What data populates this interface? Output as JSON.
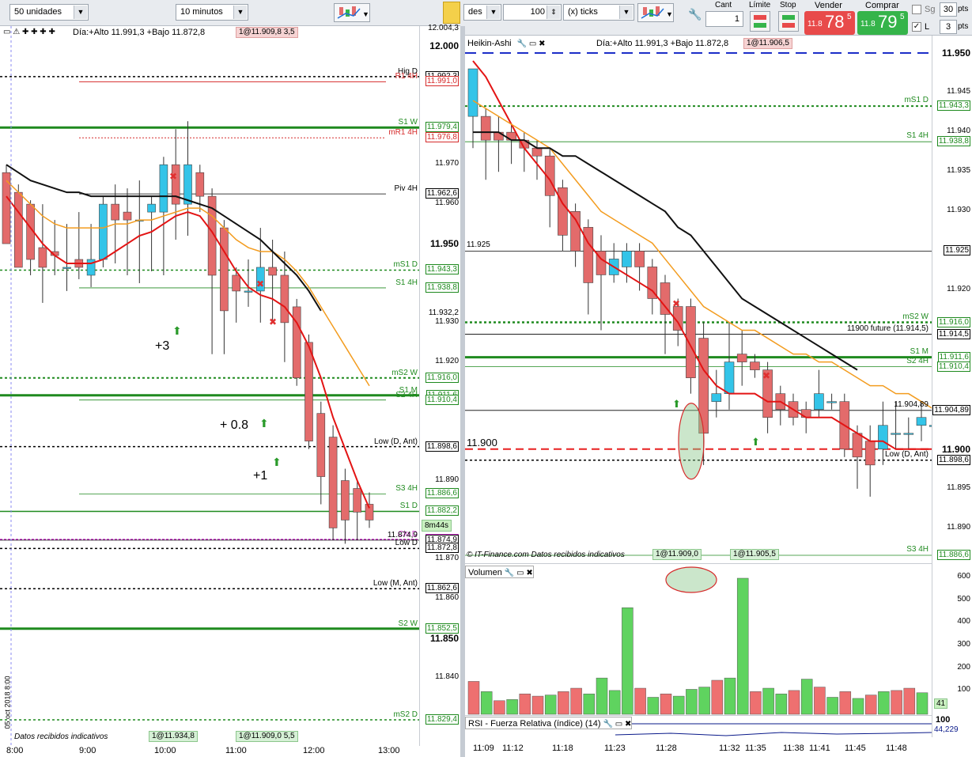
{
  "left": {
    "toolbar": {
      "quantity_combo": "50 unidades",
      "timeframe_combo": "10 minutos"
    },
    "header": {
      "range_text": "Día:+Alto 11.991,3 +Bajo 11.872,8",
      "price_box": "1@11.909,8",
      "price_box_suffix": "3,5"
    },
    "price_levels": [
      {
        "value": "12.004,3",
        "label": ""
      },
      {
        "value": "12.000",
        "label": ""
      },
      {
        "value": "11.992,3",
        "label": "Hig D"
      },
      {
        "value": "11.991,0",
        "label": "R1 4H"
      },
      {
        "value": "11.979,4",
        "label": "S1 W"
      },
      {
        "value": "11.976,8",
        "label": "mR1 4H"
      },
      {
        "value": "11.970",
        "label": ""
      },
      {
        "value": "11.962,6",
        "label": "Piv 4H"
      },
      {
        "value": "11.960",
        "label": ""
      },
      {
        "value": "11.950",
        "label": ""
      },
      {
        "value": "11.943,3",
        "label": "mS1 D"
      },
      {
        "value": "11.938,8",
        "label": "S1 4H"
      },
      {
        "value": "11.932,2",
        "label": ""
      },
      {
        "value": "11.930",
        "label": ""
      },
      {
        "value": "11.920",
        "label": ""
      },
      {
        "value": "11.916,0",
        "label": "mS2 W"
      },
      {
        "value": "11.911,6",
        "label": "S1 M"
      },
      {
        "value": "11.910,4",
        "label": "S2 4H"
      },
      {
        "value": "11.898,6",
        "label": "Low (D, Ant)"
      },
      {
        "value": "11.890",
        "label": ""
      },
      {
        "value": "11.886,6",
        "label": "S3 4H"
      },
      {
        "value": "11.882,2",
        "label": "S1 D"
      },
      {
        "value": "11.875,1",
        "label": "Clo D"
      },
      {
        "value": "11.874,9",
        "label": "11.874,9"
      },
      {
        "value": "11.872,8",
        "label": "Low D"
      },
      {
        "value": "11.870",
        "label": ""
      },
      {
        "value": "11.862,6",
        "label": "Low (M, Ant)"
      },
      {
        "value": "11.860",
        "label": ""
      },
      {
        "value": "11.852,5",
        "label": "S2 W"
      },
      {
        "value": "11.850",
        "label": ""
      },
      {
        "value": "11.840",
        "label": ""
      },
      {
        "value": "11.829,4",
        "label": "mS2 D"
      }
    ],
    "countdown": "8m44s",
    "annotations": [
      "+3",
      "+ 0.8",
      "+1"
    ],
    "footer_source": "Datos recibidos indicativos",
    "footer_box1": "1@11.934,8",
    "footer_box2": "1@11.909,0",
    "footer_box2_suffix": "5,5",
    "date_label": "05 oct 2018 8:00",
    "time_labels": [
      "8:00",
      "9:00",
      "10:00",
      "11:00",
      "12:00",
      "13:00"
    ]
  },
  "right": {
    "toolbar": {
      "partial_label": "des",
      "ticks_value": "100",
      "ticks_unit": "(x) ticks",
      "cant_label": "Cant",
      "cant_value": "1",
      "limite_label": "Límite",
      "stop_label": "Stop",
      "vender_label": "Vender",
      "vender_small": "11.8",
      "vender_big": "78",
      "vender_frac": "5",
      "comprar_label": "Comprar",
      "comprar_small": "11.8",
      "comprar_big": "79",
      "comprar_frac": "5",
      "sg_label": "Sg",
      "sg_value": "30",
      "l_label": "L",
      "l_value": "3",
      "pts": "pts"
    },
    "header": {
      "title": "Heikin-Ashi",
      "range_text": "Día:+Alto 11.991,3 +Bajo 11.872,8",
      "price_box": "1@11.906,5"
    },
    "price_levels": [
      {
        "value": "11.950",
        "label": ""
      },
      {
        "value": "11.945",
        "label": ""
      },
      {
        "value": "11.943,3",
        "label": "mS1 D"
      },
      {
        "value": "11.940",
        "label": ""
      },
      {
        "value": "11.938,8",
        "label": "S1 4H"
      },
      {
        "value": "11.935",
        "label": ""
      },
      {
        "value": "11.930",
        "label": ""
      },
      {
        "value": "11.925",
        "label": "11.925"
      },
      {
        "value": "11.920",
        "label": ""
      },
      {
        "value": "11.916,0",
        "label": "mS2 W"
      },
      {
        "value": "11.914,5",
        "label": "11900 future (11.914,5)"
      },
      {
        "value": "11.911,6",
        "label": "S1 M"
      },
      {
        "value": "11.910,4",
        "label": "S2 4H"
      },
      {
        "value": "11.905",
        "label": ""
      },
      {
        "value": "11.904,89",
        "label": "11.904,89"
      },
      {
        "value": "11.900",
        "label": "11.900"
      },
      {
        "value": "11.898,6",
        "label": "Low (D, Ant)"
      },
      {
        "value": "11.895",
        "label": ""
      },
      {
        "value": "11.890",
        "label": ""
      },
      {
        "value": "11.886,6",
        "label": "S3 4H"
      }
    ],
    "footer_source": "© IT-Finance.com Datos recibidos indicativos",
    "footer_box1": "1@11.909,0",
    "footer_box2": "1@11.905,5",
    "volume_title": "Volumen",
    "volume_ticks": [
      "600",
      "500",
      "400",
      "300",
      "200",
      "100"
    ],
    "volume_last": "41",
    "rsi_title": "RSI - Fuerza Relativa (índice) (14)",
    "rsi_tick": "100",
    "rsi_value": "44,229",
    "time_labels": [
      "11:09",
      "11:12",
      "11:18",
      "11:23",
      "11:28",
      "11:32",
      "11:35",
      "11:38",
      "11:41",
      "11:45",
      "11:48"
    ]
  },
  "colors": {
    "bull": "#33c4e8",
    "bear": "#e36b6b",
    "green_level": "#1f8a1f",
    "red_level": "#d62b2b",
    "ema_red": "#e31414",
    "ema_orange": "#f39c1f",
    "ema_black": "#111111",
    "vol_green": "#5fd35f",
    "vol_red": "#ee7070"
  }
}
